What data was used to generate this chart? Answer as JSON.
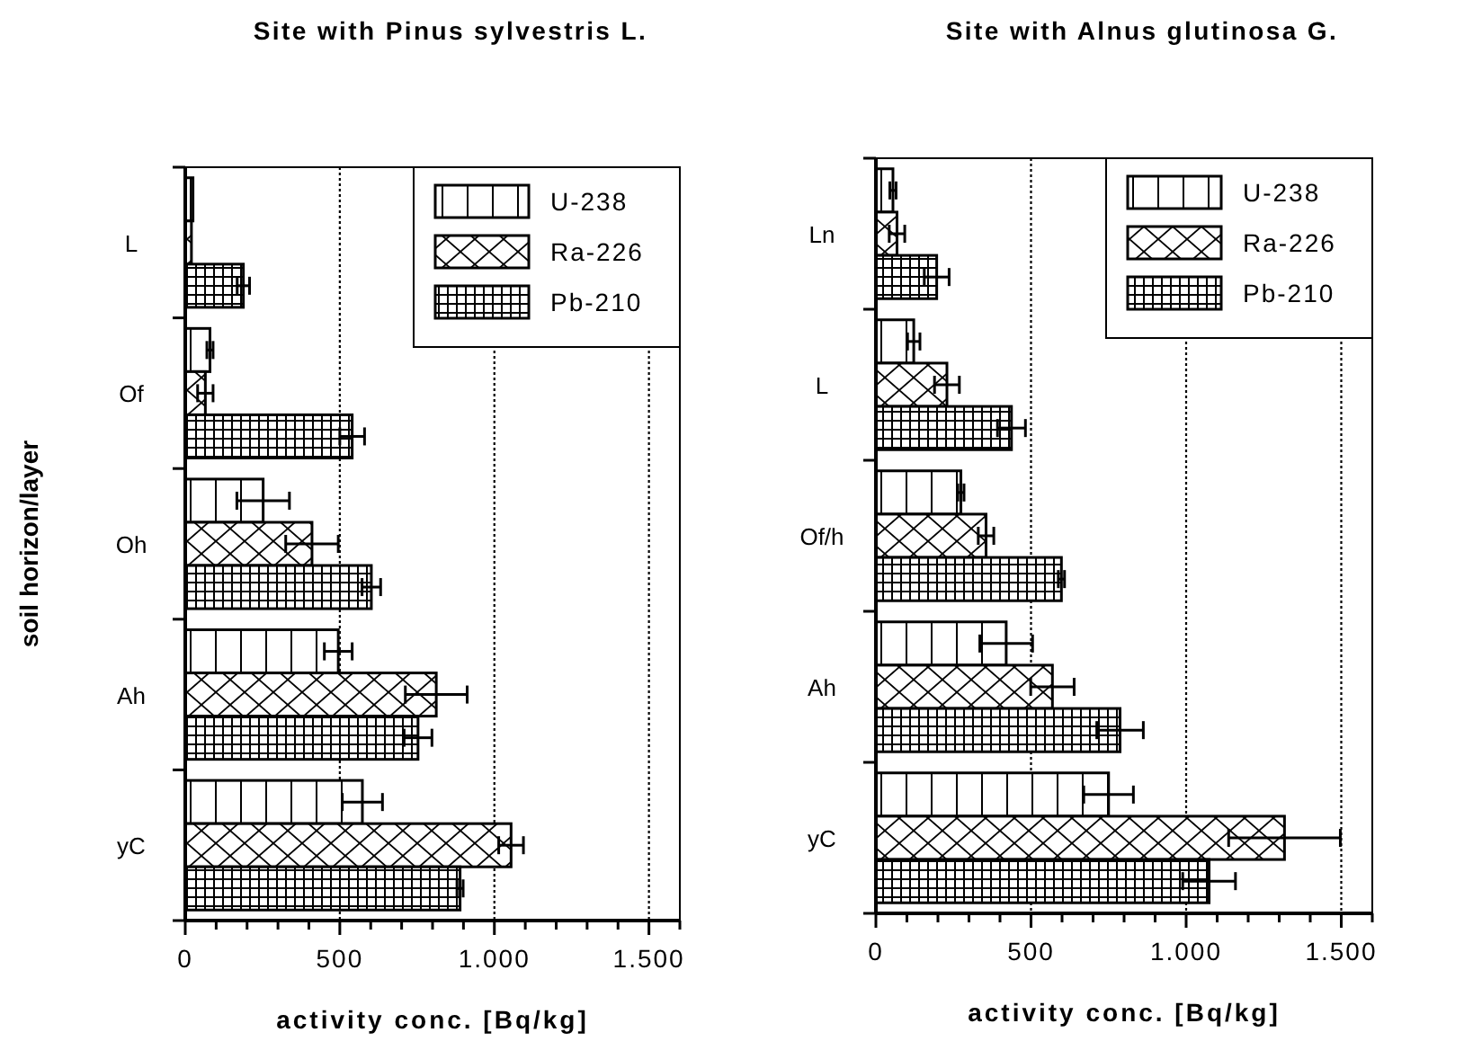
{
  "chart_data": [
    {
      "type": "bar",
      "orientation": "horizontal",
      "title": "Site with Pinus sylvestris L.",
      "xlabel": "activity conc. [Bq/kg]",
      "ylabel": "soil horizon/layer",
      "categories": [
        "L",
        "Of",
        "Oh",
        "Ah",
        "yC"
      ],
      "series": [
        {
          "name": "U-238",
          "color": "#000000",
          "values": [
            25,
            80,
            252,
            495,
            573
          ],
          "errors": [
            null,
            10,
            85,
            45,
            65
          ]
        },
        {
          "name": "Ra-226",
          "color": "#000000",
          "values": [
            20,
            65,
            410,
            812,
            1054
          ],
          "errors": [
            null,
            25,
            85,
            100,
            40
          ]
        },
        {
          "name": "Pb-210",
          "color": "#000000",
          "values": [
            188,
            540,
            602,
            753,
            889
          ],
          "errors": [
            20,
            40,
            30,
            45,
            10
          ]
        }
      ],
      "xlim": [
        0,
        1600
      ],
      "xticks": [
        {
          "value": 0,
          "label": "0"
        },
        {
          "value": 100,
          "label": null
        },
        {
          "value": 200,
          "label": null
        },
        {
          "value": 300,
          "label": null
        },
        {
          "value": 400,
          "label": null
        },
        {
          "value": 500,
          "label": "500"
        },
        {
          "value": 600,
          "label": null
        },
        {
          "value": 700,
          "label": null
        },
        {
          "value": 800,
          "label": null
        },
        {
          "value": 900,
          "label": null
        },
        {
          "value": 1000,
          "label": "1.000"
        },
        {
          "value": 1100,
          "label": null
        },
        {
          "value": 1200,
          "label": null
        },
        {
          "value": 1300,
          "label": null
        },
        {
          "value": 1400,
          "label": null
        },
        {
          "value": 1500,
          "label": "1.500"
        },
        {
          "value": 1600,
          "label": null
        }
      ],
      "ref_lines": [
        {
          "axis": "x",
          "value": 500,
          "line_style": "dotted"
        },
        {
          "axis": "x",
          "value": 1000,
          "line_style": "dotted"
        },
        {
          "axis": "x",
          "value": 1500,
          "line_style": "dotted"
        }
      ],
      "legend": "top right"
    },
    {
      "type": "bar",
      "orientation": "horizontal",
      "title": "Site with Alnus glutinosa G.",
      "xlabel": "activity conc. [Bq/kg]",
      "categories": [
        "Ln",
        "L",
        "Of/h",
        "Ah",
        "yC"
      ],
      "series": [
        {
          "name": "U-238",
          "color": "#000000",
          "values": [
            55,
            122,
            274,
            420,
            750
          ],
          "errors": [
            10,
            20,
            10,
            85,
            80
          ]
        },
        {
          "name": "Ra-226",
          "color": "#000000",
          "values": [
            68,
            229,
            355,
            569,
            1317
          ],
          "errors": [
            25,
            40,
            25,
            70,
            180
          ]
        },
        {
          "name": "Pb-210",
          "color": "#000000",
          "values": [
            196,
            437,
            598,
            787,
            1074
          ],
          "errors": [
            40,
            45,
            10,
            75,
            85
          ]
        }
      ],
      "xlim": [
        0,
        1600
      ],
      "xticks": [
        {
          "value": 0,
          "label": "0"
        },
        {
          "value": 100,
          "label": null
        },
        {
          "value": 200,
          "label": null
        },
        {
          "value": 300,
          "label": null
        },
        {
          "value": 400,
          "label": null
        },
        {
          "value": 500,
          "label": "500"
        },
        {
          "value": 600,
          "label": null
        },
        {
          "value": 700,
          "label": null
        },
        {
          "value": 800,
          "label": null
        },
        {
          "value": 900,
          "label": null
        },
        {
          "value": 1000,
          "label": "1.000"
        },
        {
          "value": 1100,
          "label": null
        },
        {
          "value": 1200,
          "label": null
        },
        {
          "value": 1300,
          "label": null
        },
        {
          "value": 1400,
          "label": null
        },
        {
          "value": 1500,
          "label": "1.500"
        },
        {
          "value": 1600,
          "label": null
        }
      ],
      "ref_lines": [
        {
          "axis": "x",
          "value": 500,
          "line_style": "dotted"
        },
        {
          "axis": "x",
          "value": 1000,
          "line_style": "dotted"
        },
        {
          "axis": "x",
          "value": 1500,
          "line_style": "dotted"
        }
      ],
      "legend": "top right"
    }
  ]
}
